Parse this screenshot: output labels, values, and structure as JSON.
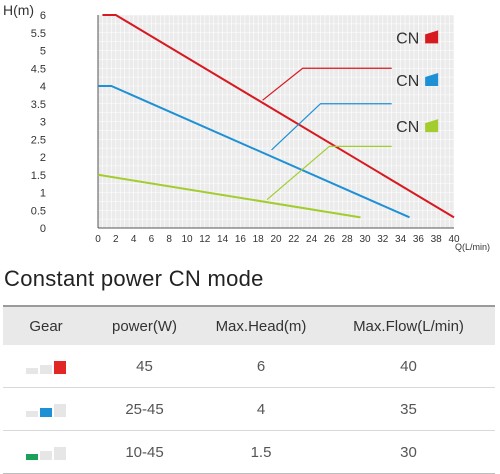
{
  "chart_data": {
    "type": "line",
    "ylabel": "H(m)",
    "xlabel": "Q(L/min)",
    "xlim": [
      0,
      40
    ],
    "ylim": [
      0,
      6
    ],
    "x_ticks": [
      0,
      2,
      4,
      6,
      8,
      10,
      12,
      14,
      16,
      18,
      20,
      22,
      24,
      26,
      28,
      30,
      32,
      34,
      36,
      38,
      40
    ],
    "y_ticks": [
      "0",
      "0.5",
      "1",
      "1.5",
      "2",
      "2.5",
      "3",
      "3.5",
      "4",
      "4.5",
      "5",
      "5.5",
      "6"
    ],
    "grid": true,
    "series": [
      {
        "name": "CN",
        "color": "#d71920",
        "points": [
          [
            0.5,
            6
          ],
          [
            2,
            6
          ],
          [
            40,
            0.3
          ]
        ],
        "callout": [
          [
            18.5,
            3.6
          ],
          [
            23,
            4.5
          ],
          [
            33,
            4.5
          ]
        ],
        "label_at": [
          33.5,
          5.2
        ]
      },
      {
        "name": "CN",
        "color": "#1e90d6",
        "points": [
          [
            0,
            4
          ],
          [
            1.5,
            4
          ],
          [
            35,
            0.3
          ]
        ],
        "callout": [
          [
            19.5,
            2.2
          ],
          [
            25,
            3.5
          ],
          [
            33,
            3.5
          ]
        ],
        "label_at": [
          33.5,
          4.0
        ]
      },
      {
        "name": "CN",
        "color": "#a3cc2e",
        "points": [
          [
            0,
            1.5
          ],
          [
            29.5,
            0.3
          ]
        ],
        "callout": [
          [
            19,
            0.8
          ],
          [
            26,
            2.3
          ],
          [
            33,
            2.3
          ]
        ],
        "label_at": [
          33.5,
          2.7
        ]
      }
    ]
  },
  "table": {
    "title": "Constant power CN mode",
    "headers": [
      "Gear",
      "power(W)",
      "Max.Head(m)",
      "Max.Flow(L/min)"
    ],
    "rows": [
      {
        "gear_color": "#e22626",
        "gear_level": 3,
        "power": "45",
        "head": "6",
        "flow": "40"
      },
      {
        "gear_color": "#1e90d6",
        "gear_level": 2,
        "power": "25-45",
        "head": "4",
        "flow": "35"
      },
      {
        "gear_color": "#1aa05a",
        "gear_level": 1,
        "power": "10-45",
        "head": "1.5",
        "flow": "30"
      }
    ]
  }
}
